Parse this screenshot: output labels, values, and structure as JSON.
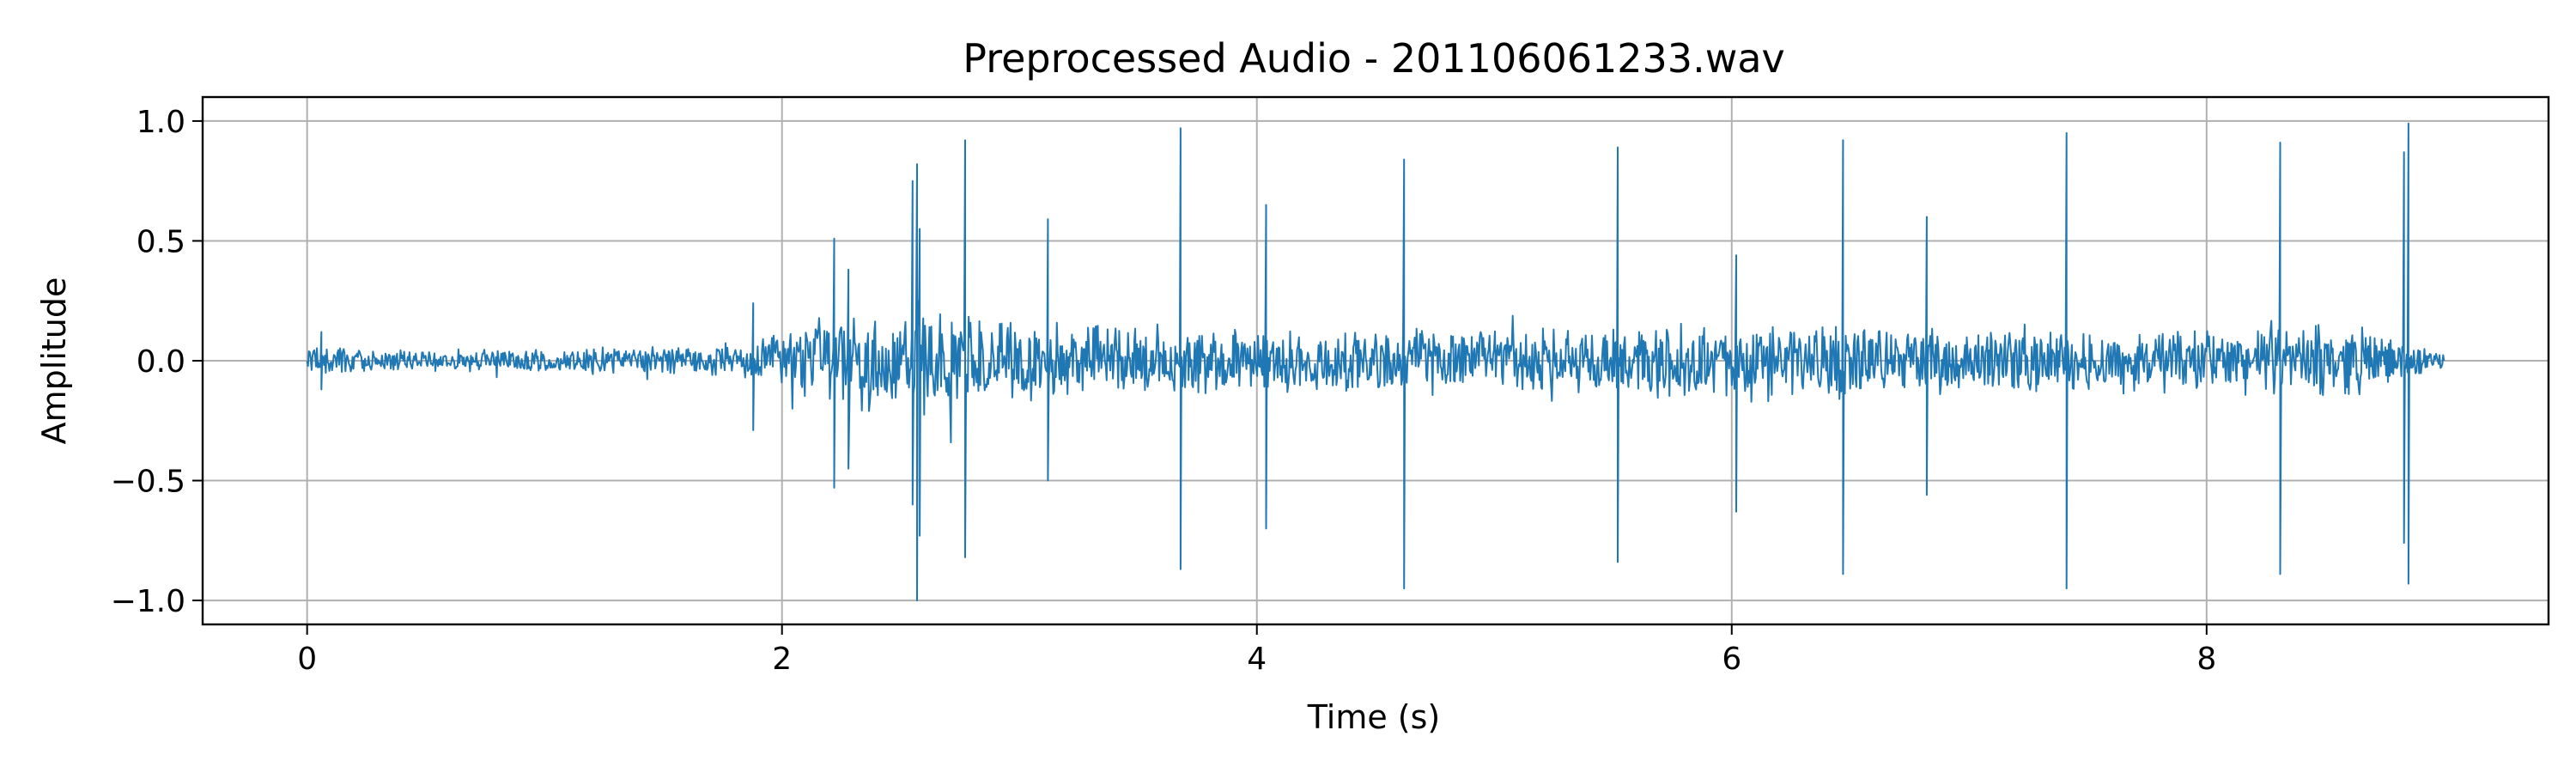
{
  "chart_data": {
    "type": "line",
    "title": "Preprocessed Audio - 201106061233.wav",
    "xlabel": "Time (s)",
    "ylabel": "Amplitude",
    "xlim": [
      -0.44,
      9.44
    ],
    "ylim": [
      -1.1,
      1.1
    ],
    "xticks": [
      0,
      2,
      4,
      6,
      8
    ],
    "xtick_labels": [
      "0",
      "2",
      "4",
      "6",
      "8"
    ],
    "yticks": [
      -1.0,
      -0.5,
      0.0,
      0.5,
      1.0
    ],
    "ytick_labels": [
      "−1.0",
      "−0.5",
      "0.0",
      "0.5",
      "1.0"
    ],
    "grid": true,
    "legend": "none",
    "duration_s": 9.0,
    "series": [
      {
        "color": "#1f77b4",
        "baseline_envelope": [
          [
            0.0,
            0.07
          ],
          [
            0.3,
            0.05
          ],
          [
            0.8,
            0.05
          ],
          [
            1.3,
            0.06
          ],
          [
            1.85,
            0.08
          ],
          [
            2.0,
            0.14
          ],
          [
            2.3,
            0.22
          ],
          [
            2.6,
            0.25
          ],
          [
            3.0,
            0.18
          ],
          [
            4.0,
            0.14
          ],
          [
            5.0,
            0.15
          ],
          [
            6.0,
            0.17
          ],
          [
            7.0,
            0.14
          ],
          [
            8.0,
            0.14
          ],
          [
            8.6,
            0.16
          ],
          [
            9.0,
            0.04
          ]
        ],
        "spikes": [
          {
            "t": 0.06,
            "max": 0.12,
            "min": -0.12
          },
          {
            "t": 1.88,
            "max": 0.24,
            "min": -0.29
          },
          {
            "t": 2.22,
            "max": 0.51,
            "min": -0.53
          },
          {
            "t": 2.28,
            "max": 0.38,
            "min": -0.45
          },
          {
            "t": 2.55,
            "max": 0.75,
            "min": -0.6
          },
          {
            "t": 2.57,
            "max": 0.82,
            "min": -1.0
          },
          {
            "t": 2.58,
            "max": 0.55,
            "min": -0.73
          },
          {
            "t": 2.77,
            "max": 0.92,
            "min": -0.82
          },
          {
            "t": 3.12,
            "max": 0.59,
            "min": -0.5
          },
          {
            "t": 3.68,
            "max": 0.97,
            "min": -0.87
          },
          {
            "t": 4.04,
            "max": 0.65,
            "min": -0.7
          },
          {
            "t": 4.62,
            "max": 0.84,
            "min": -0.95
          },
          {
            "t": 5.52,
            "max": 0.89,
            "min": -0.84
          },
          {
            "t": 6.02,
            "max": 0.44,
            "min": -0.63
          },
          {
            "t": 6.47,
            "max": 0.92,
            "min": -0.89
          },
          {
            "t": 6.82,
            "max": 0.6,
            "min": -0.56
          },
          {
            "t": 7.41,
            "max": 0.95,
            "min": -0.95
          },
          {
            "t": 8.31,
            "max": 0.91,
            "min": -0.89
          },
          {
            "t": 8.83,
            "max": 0.87,
            "min": -0.76
          },
          {
            "t": 8.85,
            "max": 0.99,
            "min": -0.93
          }
        ]
      }
    ]
  }
}
